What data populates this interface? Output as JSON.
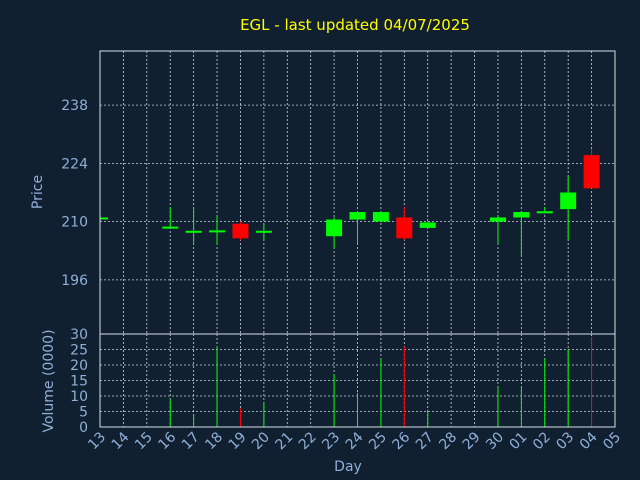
{
  "chart_data": {
    "type": "candlestick",
    "title": "EGL - last updated 04/07/2025",
    "xlabel": "Day",
    "price_panel": {
      "ylabel": "Price",
      "yticks": [
        196,
        210,
        224,
        238
      ],
      "ylim": [
        183,
        251
      ]
    },
    "volume_panel": {
      "ylabel": "Volume (0000)",
      "yticks": [
        0,
        5,
        10,
        15,
        20,
        25,
        30
      ],
      "ylim": [
        0,
        30
      ]
    },
    "x_labels": [
      "13",
      "14",
      "15",
      "16",
      "17",
      "18",
      "19",
      "20",
      "21",
      "22",
      "23",
      "24",
      "25",
      "26",
      "27",
      "28",
      "29",
      "30",
      "01",
      "02",
      "03",
      "04",
      "05"
    ],
    "colors": {
      "up": "#00ff00",
      "down": "#ff0000"
    },
    "candles": [
      {
        "day": "13",
        "open": 211,
        "high": 211,
        "low": 211,
        "close": 211,
        "volume": 0
      },
      {
        "day": "16",
        "open": 208.5,
        "high": 213.5,
        "low": 208.5,
        "close": 208.8,
        "volume": 9
      },
      {
        "day": "17",
        "open": 207.5,
        "high": 213.5,
        "low": 204.5,
        "close": 207.8,
        "volume": 4
      },
      {
        "day": "18",
        "open": 207.6,
        "high": 211.5,
        "low": 204.5,
        "close": 207.9,
        "volume": 26
      },
      {
        "day": "19",
        "open": 209.5,
        "high": 210,
        "low": 205.5,
        "close": 206,
        "volume": 6
      },
      {
        "day": "20",
        "open": 207.5,
        "high": 209.5,
        "low": 205.5,
        "close": 207.8,
        "volume": 8
      },
      {
        "day": "23",
        "open": 206.5,
        "high": 211,
        "low": 203.5,
        "close": 210.5,
        "volume": 17
      },
      {
        "day": "24",
        "open": 210.5,
        "high": 212.5,
        "low": 204.5,
        "close": 212.3,
        "volume": 11
      },
      {
        "day": "25",
        "open": 210,
        "high": 212.5,
        "low": 210,
        "close": 212.3,
        "volume": 22
      },
      {
        "day": "26",
        "open": 211,
        "high": 213.5,
        "low": 205.5,
        "close": 206,
        "volume": 26
      },
      {
        "day": "27",
        "open": 208.5,
        "high": 210,
        "low": 208.5,
        "close": 209.8,
        "volume": 5
      },
      {
        "day": "30",
        "open": 210,
        "high": 211.5,
        "low": 204.5,
        "close": 211,
        "volume": 13
      },
      {
        "day": "01",
        "open": 211,
        "high": 212.5,
        "low": 201.5,
        "close": 212.3,
        "volume": 13
      },
      {
        "day": "02",
        "open": 212,
        "high": 213.5,
        "low": 212,
        "close": 212.5,
        "volume": 22
      },
      {
        "day": "03",
        "open": 213,
        "high": 221,
        "low": 205.5,
        "close": 217,
        "volume": 25
      },
      {
        "day": "04",
        "open": 226,
        "high": 227.5,
        "low": 218,
        "close": 218,
        "volume": 29
      }
    ]
  }
}
